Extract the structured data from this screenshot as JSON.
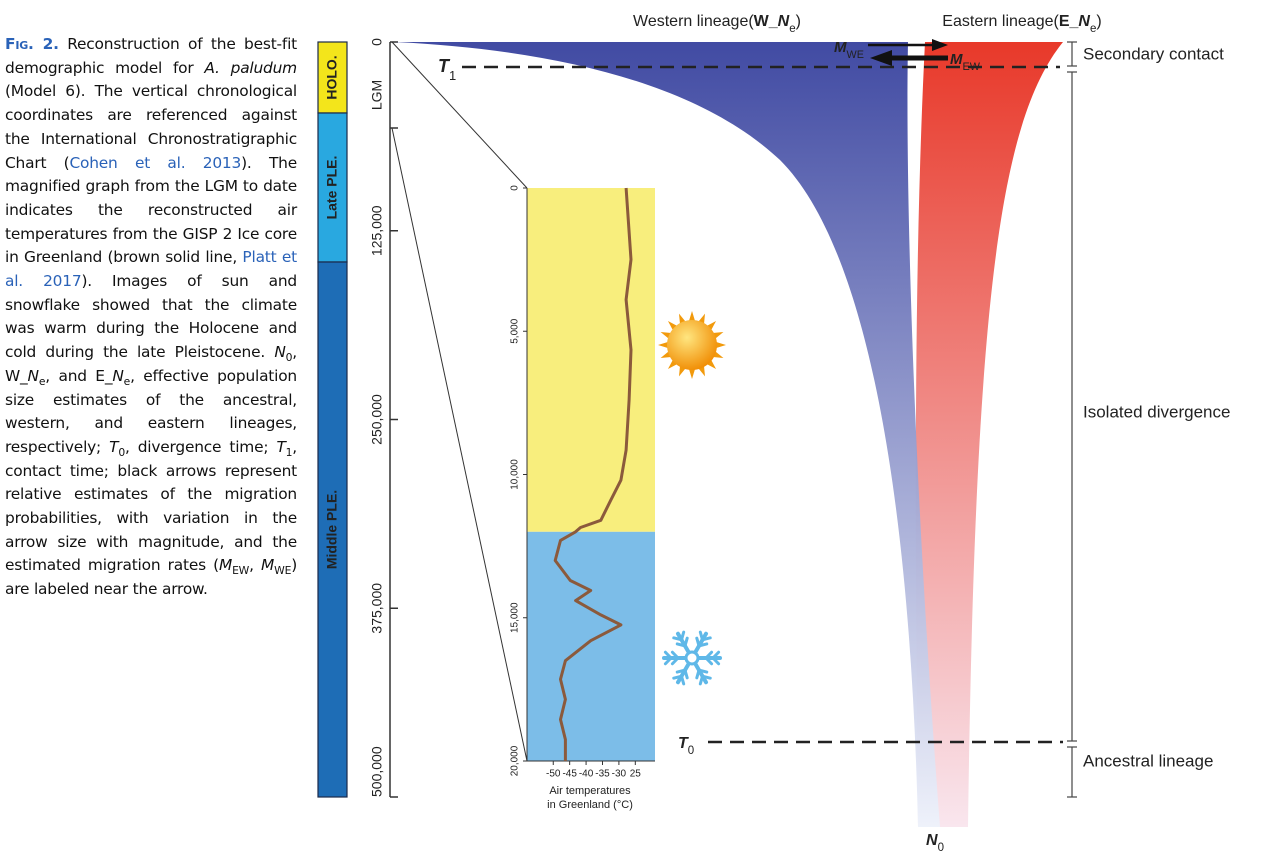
{
  "caption": {
    "runs": [
      {
        "text": "Fig. 2.",
        "style": "label"
      },
      {
        "text": " Reconstruction of the best-fit demographic model for ",
        "style": "plain"
      },
      {
        "text": "A. paludum",
        "style": "italic"
      },
      {
        "text": " (Model 6). The vertical chronological coordinates are referenced against the International Chronostratigraphic Chart (",
        "style": "plain"
      },
      {
        "text": "Cohen et al. 2013",
        "style": "link"
      },
      {
        "text": "). The magnified graph from the LGM to date indicates the reconstructed air temperatures from the GISP 2 Ice core in Greenland (brown solid line, ",
        "style": "plain"
      },
      {
        "text": "Platt et al. 2017",
        "style": "link"
      },
      {
        "text": "). Images of sun and snowflake showed that the climate was warm during the Holocene and cold during the late Pleistocene. ",
        "style": "plain"
      },
      {
        "text": "N",
        "style": "italic"
      },
      {
        "text": "0",
        "style": "sub"
      },
      {
        "text": ", W_",
        "style": "plain"
      },
      {
        "text": "N",
        "style": "italic"
      },
      {
        "text": "e",
        "style": "sub"
      },
      {
        "text": ", and E_",
        "style": "plain"
      },
      {
        "text": "N",
        "style": "italic"
      },
      {
        "text": "e",
        "style": "sub"
      },
      {
        "text": ", effective population size estimates of the ancestral, western, and eastern lineages, respectively; ",
        "style": "plain"
      },
      {
        "text": "T",
        "style": "italic"
      },
      {
        "text": "0",
        "style": "sub"
      },
      {
        "text": ", divergence time; ",
        "style": "plain"
      },
      {
        "text": "T",
        "style": "italic"
      },
      {
        "text": "1",
        "style": "sub"
      },
      {
        "text": ", contact time; black arrows represent relative estimates of the migration probabilities, with variation in the arrow size with magnitude, and the estimated migration rates (",
        "style": "plain"
      },
      {
        "text": "M",
        "style": "italic"
      },
      {
        "text": "EW",
        "style": "sub"
      },
      {
        "text": ", ",
        "style": "plain"
      },
      {
        "text": "M",
        "style": "italic"
      },
      {
        "text": "WE",
        "style": "sub"
      },
      {
        "text": ") are labeled near the arrow.",
        "style": "plain"
      }
    ]
  },
  "timeline": {
    "ylim": [
      0,
      500000
    ],
    "yticks": [
      0,
      {
        "value": 125000,
        "label": "125,000"
      },
      {
        "value": 250000,
        "label": "250,000"
      },
      {
        "value": 375000,
        "label": "375,000"
      },
      {
        "value": 500000,
        "label": "500,000"
      }
    ],
    "lgm": "LGM",
    "epochs": [
      {
        "label": "HOLO.",
        "color": "#f3e51b"
      },
      {
        "label": "Late PLE.",
        "color": "#29a8e0"
      },
      {
        "label": "Middle PLE.",
        "color": "#1e6db6"
      }
    ]
  },
  "lineages": {
    "western": {
      "color": "#3b45a0",
      "runs": [
        {
          "text": "Western lineage(",
          "style": "plain"
        },
        {
          "text": "W_",
          "style": "bold"
        },
        {
          "text": "N",
          "style": "bolditalic"
        },
        {
          "text": "e",
          "style": "sub"
        },
        {
          "text": ")",
          "style": "plain"
        }
      ]
    },
    "eastern": {
      "color": "#e8392a",
      "runs": [
        {
          "text": "Eastern lineage(",
          "style": "plain"
        },
        {
          "text": "E_",
          "style": "bold"
        },
        {
          "text": "N",
          "style": "bolditalic"
        },
        {
          "text": "e",
          "style": "sub"
        },
        {
          "text": ")",
          "style": "plain"
        }
      ]
    }
  },
  "markers": {
    "T1": [
      {
        "text": "T",
        "style": "bolditalic"
      },
      {
        "text": "1",
        "style": "sub"
      }
    ],
    "T0": [
      {
        "text": "T",
        "style": "bolditalic"
      },
      {
        "text": "0",
        "style": "sub"
      }
    ],
    "N0": [
      {
        "text": "N",
        "style": "bolditalic"
      },
      {
        "text": "0",
        "style": "sub"
      }
    ],
    "M_WE": [
      {
        "text": "M",
        "style": "bolditalic"
      },
      {
        "text": "WE",
        "style": "sub"
      }
    ],
    "M_EW": [
      {
        "text": "M",
        "style": "bolditalic"
      },
      {
        "text": "EW",
        "style": "sub"
      }
    ]
  },
  "phases": [
    "Secondary contact",
    "Isolated divergence",
    "Ancestral lineage"
  ],
  "chart_data": {
    "type": "line",
    "color": "#8b5a3c",
    "years": [
      0,
      2500,
      3900,
      5650,
      7400,
      9150,
      10200,
      10900,
      11600,
      11850,
      12000,
      12300,
      13000,
      13700,
      14050,
      14400,
      14900,
      15250,
      15800,
      16500,
      17150,
      17850,
      18550,
      19250,
      20000
    ],
    "values": [
      -27.8,
      -26.3,
      -27.8,
      -26.3,
      -26.9,
      -27.8,
      -29.4,
      -32.5,
      -35.5,
      -41.7,
      -43.2,
      -47.8,
      -49.4,
      -44.8,
      -38.6,
      -43.2,
      -35.5,
      -29.4,
      -38.6,
      -46.3,
      -47.8,
      -46.3,
      -47.8,
      -46.3,
      -46.3
    ],
    "ylim": [
      0,
      20000
    ],
    "yticks": [
      0,
      {
        "value": 5000,
        "label": "5,000"
      },
      {
        "value": 10000,
        "label": "10,000"
      },
      {
        "value": 15000,
        "label": "15,000"
      },
      {
        "value": 20000,
        "label": "20,000"
      }
    ],
    "xlim": [
      -58,
      -19
    ],
    "xticks": [
      -50,
      -45,
      -40,
      -35,
      -30,
      {
        "value": -25,
        "label": "25"
      }
    ],
    "xlabel": [
      "Air temperatures",
      "in Greenland (°C)"
    ],
    "bands": [
      {
        "from": 0,
        "to": 12000,
        "color": "#f8ee7d"
      },
      {
        "from": 12000,
        "to": 20000,
        "color": "#7cbde8"
      }
    ]
  }
}
